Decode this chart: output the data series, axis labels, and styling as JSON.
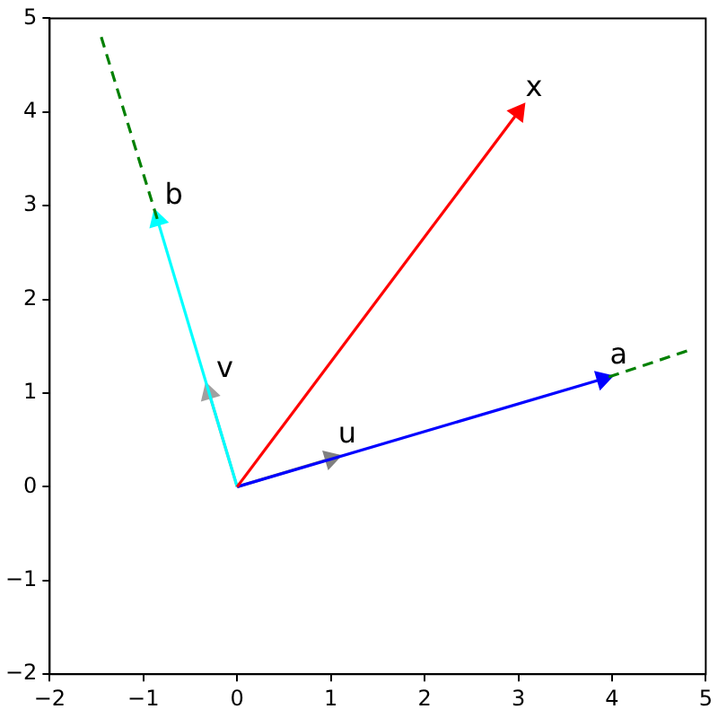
{
  "chart_data": {
    "type": "line",
    "xlim": [
      -2,
      5
    ],
    "ylim": [
      -2,
      5
    ],
    "xticks": [
      -2,
      -1,
      0,
      1,
      2,
      3,
      4,
      5
    ],
    "yticks": [
      -2,
      -1,
      0,
      1,
      2,
      3,
      4,
      5
    ],
    "grid": false,
    "legend": false,
    "marker": "none",
    "series": [
      {
        "name": "x",
        "color": "#ff0000",
        "marker": "triangle",
        "x": [
          0,
          3
        ],
        "values": [
          0,
          4
        ]
      },
      {
        "color": "#008000",
        "line_style": "dashed",
        "x": [
          4.8,
          3.9
        ],
        "values": [
          1.45,
          1.15
        ]
      },
      {
        "name": "a",
        "color": "#0000ff",
        "marker": "triangle",
        "x": [
          0,
          3.9
        ],
        "values": [
          0,
          1.15
        ]
      },
      {
        "color": "#008000",
        "line_style": "dashed",
        "x": [
          -1.45,
          -0.85
        ],
        "values": [
          4.8,
          2.85
        ]
      },
      {
        "name": "b",
        "color": "#00ffff",
        "marker": "triangle",
        "x": [
          0,
          -0.85
        ],
        "values": [
          0,
          2.85
        ]
      },
      {
        "name": "u",
        "color": "#808080",
        "marker": "triangle",
        "x": [
          0,
          1
        ],
        "values": [
          0,
          0.3
        ]
      },
      {
        "name": "v",
        "color": "#a0a0a0",
        "marker": "triangle",
        "x": [
          0,
          -0.3
        ],
        "values": [
          0,
          1
        ]
      }
    ]
  }
}
